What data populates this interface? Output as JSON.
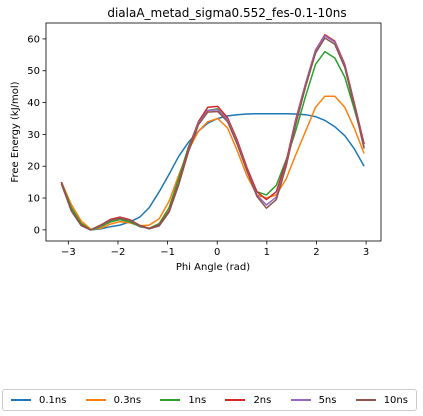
{
  "chart_data": {
    "type": "line",
    "title": "dialaA_metad_sigma0.552_fes-0.1-10ns",
    "xlabel": "Phi Angle (rad)",
    "ylabel": "Free Energy (kJ/mol)",
    "xlim": [
      -3.45,
      3.3
    ],
    "ylim": [
      -3.5,
      65
    ],
    "xticks": [
      -3,
      -2,
      -1,
      0,
      1,
      2,
      3
    ],
    "yticks": [
      0,
      10,
      20,
      30,
      40,
      50,
      60
    ],
    "grid": false,
    "legend_placement": "bottom",
    "x": [
      -3.14,
      -2.94,
      -2.74,
      -2.55,
      -2.35,
      -2.15,
      -1.96,
      -1.76,
      -1.56,
      -1.37,
      -1.17,
      -0.97,
      -0.78,
      -0.58,
      -0.38,
      -0.19,
      0.01,
      0.21,
      0.4,
      0.6,
      0.8,
      0.99,
      1.19,
      1.39,
      1.58,
      1.78,
      1.98,
      2.17,
      2.37,
      2.57,
      2.76,
      2.96
    ],
    "series": [
      {
        "name": "0.1ns",
        "color": "#1f77b4",
        "values": [
          15,
          7,
          2,
          0,
          0.3,
          1,
          1.5,
          2.5,
          4,
          7,
          12,
          17.5,
          23,
          27.5,
          31,
          33.5,
          35,
          35.8,
          36.2,
          36.4,
          36.5,
          36.5,
          36.5,
          36.5,
          36.4,
          36.2,
          35.6,
          34.4,
          32.4,
          29.6,
          25.5,
          20
        ]
      },
      {
        "name": "0.3ns",
        "color": "#ff7f0e",
        "values": [
          15,
          8,
          2.8,
          0.2,
          0.5,
          1.8,
          2.6,
          2.2,
          1.3,
          1.5,
          3.5,
          9,
          17,
          25,
          31,
          34,
          35,
          32,
          25,
          17,
          11,
          10,
          11,
          16,
          23.5,
          31,
          38.5,
          42,
          42,
          38.5,
          32,
          24
        ]
      },
      {
        "name": "1ns",
        "color": "#2ca02c",
        "values": [
          15,
          7,
          2,
          0,
          1,
          2.5,
          3.2,
          2.5,
          1,
          0.5,
          2,
          7,
          16,
          26,
          33.5,
          37.5,
          38,
          34.5,
          27,
          19,
          12,
          11,
          14,
          22,
          31,
          42,
          52,
          56,
          54,
          48,
          38,
          27
        ]
      },
      {
        "name": "2ns",
        "color": "#d62728",
        "values": [
          15,
          6,
          1.5,
          0,
          1.5,
          3.3,
          4,
          3.2,
          1.4,
          0.5,
          1.5,
          6,
          14.5,
          25.5,
          34,
          38.5,
          38.8,
          35.2,
          28.3,
          19.5,
          12,
          9.5,
          12,
          21.5,
          34.5,
          46,
          56.5,
          61.3,
          59.3,
          52,
          40,
          27
        ]
      },
      {
        "name": "5ns",
        "color": "#9467bd",
        "values": [
          14.5,
          6,
          1.3,
          0,
          1.3,
          3,
          3.7,
          3,
          1.2,
          0.3,
          1.2,
          5.6,
          14,
          24.8,
          33.5,
          37.5,
          37.8,
          34.6,
          27.5,
          18.7,
          11,
          7.8,
          10.3,
          20.5,
          33.8,
          45.8,
          56.3,
          61,
          59,
          51.5,
          39.5,
          26
        ]
      },
      {
        "name": "10ns",
        "color": "#8c564b",
        "values": [
          14.5,
          6,
          1.4,
          0,
          1.4,
          3,
          3.6,
          3,
          1.3,
          0.4,
          1.3,
          5.6,
          14,
          24.5,
          33,
          37,
          37.2,
          34,
          27,
          18.5,
          10.5,
          6.8,
          9.5,
          20,
          33,
          45,
          55.5,
          60.3,
          58.3,
          51,
          39,
          25.5
        ]
      }
    ]
  }
}
